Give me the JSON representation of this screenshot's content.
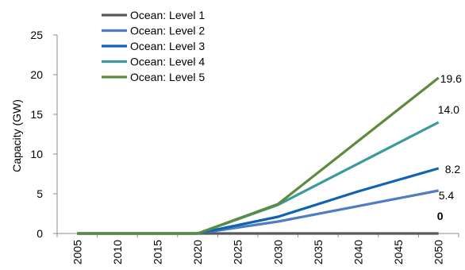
{
  "chart_data": {
    "type": "line",
    "ylabel": "Capacity (GW)",
    "xlabel": "",
    "x": [
      2005,
      2010,
      2015,
      2020,
      2025,
      2030,
      2035,
      2040,
      2045,
      2050
    ],
    "xticks": [
      "2005",
      "2010",
      "2015",
      "2020",
      "2025",
      "2030",
      "2035",
      "2040",
      "2045",
      "2050"
    ],
    "ylim": [
      0,
      25
    ],
    "yticks": [
      0,
      5,
      10,
      15,
      20,
      25
    ],
    "legend_position": "top-left",
    "grid": false,
    "series": [
      {
        "name": "Ocean: Level 1",
        "color": "#595959",
        "x": [
          2005,
          2020,
          2050
        ],
        "values": [
          0,
          0,
          0
        ],
        "end_label": "0"
      },
      {
        "name": "Ocean: Level 2",
        "color": "#4f7cc2",
        "x": [
          2005,
          2020,
          2030,
          2050
        ],
        "values": [
          0,
          0,
          1.5,
          5.4
        ],
        "end_label": "5.4"
      },
      {
        "name": "Ocean: Level 3",
        "color": "#0f63b0",
        "x": [
          2005,
          2020,
          2030,
          2040,
          2050
        ],
        "values": [
          0,
          0,
          2.1,
          5.3,
          8.2
        ],
        "end_label": "8.2"
      },
      {
        "name": "Ocean: Level 4",
        "color": "#3c9a9d",
        "x": [
          2005,
          2020,
          2030,
          2050
        ],
        "values": [
          0,
          0,
          3.6,
          14.0
        ],
        "end_label": "14.0"
      },
      {
        "name": "Ocean: Level 5",
        "color": "#5c8a3f",
        "x": [
          2005,
          2020,
          2030,
          2050
        ],
        "values": [
          0,
          0,
          3.7,
          19.6
        ],
        "end_label": "19.6"
      }
    ]
  }
}
